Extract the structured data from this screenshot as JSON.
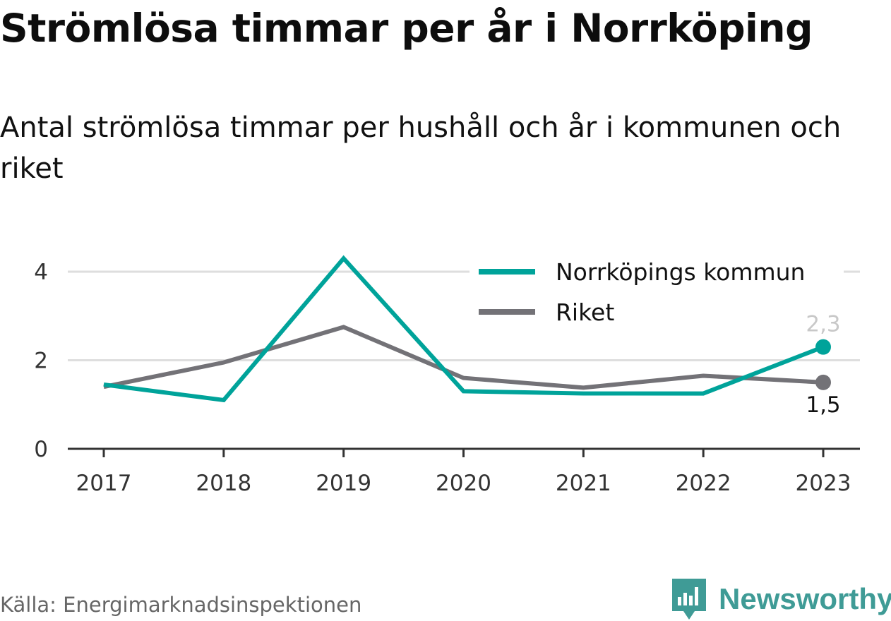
{
  "title": "Strömlösa timmar per år i Norrköping",
  "subtitle": "Antal strömlösa timmar per hushåll och år i kommunen och riket",
  "source": "Källa: Energimarknadsinspektionen",
  "brand": {
    "name": "Newsworthy",
    "icon": "newsworthy-logo-icon",
    "color": "#3f9b96"
  },
  "chart_data": {
    "type": "line",
    "x": [
      "2017",
      "2018",
      "2019",
      "2020",
      "2021",
      "2022",
      "2023"
    ],
    "ylim": [
      0,
      4.5
    ],
    "yticks": [
      "0",
      "2",
      "4"
    ],
    "ytick_values": [
      0,
      2,
      4
    ],
    "grid": true,
    "legend_position": "top-right",
    "series": [
      {
        "name": "Norrköpings kommun",
        "color": "#00a39a",
        "values": [
          1.45,
          1.1,
          4.3,
          1.3,
          1.25,
          1.25,
          2.3
        ],
        "end_label": "2,3",
        "end_label_color": "#c8c8c8"
      },
      {
        "name": "Riket",
        "color": "#737277",
        "values": [
          1.4,
          1.95,
          2.75,
          1.6,
          1.38,
          1.65,
          1.5
        ],
        "end_label": "1,5",
        "end_label_color": "#111111"
      }
    ]
  }
}
